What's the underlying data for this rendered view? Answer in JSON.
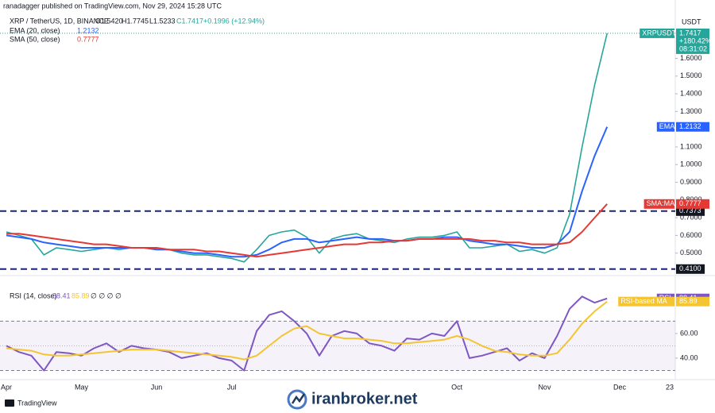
{
  "header": {
    "publisher": "ranadagger published on TradingView.com, Nov 29, 2024 15:28 UTC",
    "ohlc": [
      "O1.5420",
      "H1.7745",
      "L1.5233",
      "C1.7417",
      "+0.1996 (+12.94%)"
    ],
    "ema_value": "1.2132",
    "sma_value": "0.7777"
  },
  "chart_data": [
    {
      "type": "line",
      "currency": "USDT",
      "categories": [
        "Apr",
        null,
        null,
        null,
        null,
        null,
        "May",
        null,
        null,
        null,
        null,
        null,
        "Jun",
        null,
        null,
        null,
        null,
        null,
        "Jul",
        null,
        null,
        null,
        null,
        null,
        null,
        null,
        null,
        null,
        null,
        null,
        null,
        null,
        null,
        null,
        null,
        null,
        "Oct",
        null,
        null,
        null,
        null,
        null,
        null,
        "Nov",
        null,
        null,
        null,
        null,
        null,
        "Dec",
        null,
        null,
        null,
        "23"
      ],
      "series": [
        {
          "name": "XRP / TetherUS, 1D, BINANCE",
          "color": "#26a69a",
          "values": [
            0.62,
            0.6,
            0.58,
            0.49,
            0.53,
            0.52,
            0.51,
            0.52,
            0.53,
            0.52,
            0.53,
            0.53,
            0.52,
            0.52,
            0.5,
            0.49,
            0.49,
            0.48,
            0.47,
            0.45,
            0.52,
            0.6,
            0.62,
            0.63,
            0.59,
            0.5,
            0.58,
            0.6,
            0.61,
            0.58,
            0.57,
            0.56,
            0.58,
            0.59,
            0.59,
            0.6,
            0.62,
            0.53,
            0.53,
            0.54,
            0.55,
            0.51,
            0.52,
            0.5,
            0.53,
            0.72,
            1.1,
            1.45,
            1.7417,
            null,
            null,
            null,
            null,
            null
          ]
        },
        {
          "name": "EMA (20, close)",
          "color": "#2962ff",
          "values": [
            0.6,
            0.59,
            0.58,
            0.56,
            0.55,
            0.54,
            0.53,
            0.53,
            0.53,
            0.53,
            0.53,
            0.53,
            0.52,
            0.52,
            0.51,
            0.5,
            0.5,
            0.49,
            0.48,
            0.48,
            0.49,
            0.52,
            0.56,
            0.58,
            0.58,
            0.56,
            0.57,
            0.58,
            0.59,
            0.58,
            0.58,
            0.57,
            0.57,
            0.58,
            0.58,
            0.59,
            0.59,
            0.57,
            0.56,
            0.55,
            0.55,
            0.54,
            0.53,
            0.53,
            0.55,
            0.62,
            0.85,
            1.05,
            1.2132,
            null,
            null,
            null,
            null,
            null
          ]
        },
        {
          "name": "SMA (50, close)",
          "color": "#e53935",
          "values": [
            0.61,
            0.61,
            0.6,
            0.59,
            0.58,
            0.57,
            0.56,
            0.55,
            0.55,
            0.54,
            0.53,
            0.53,
            0.53,
            0.52,
            0.52,
            0.52,
            0.51,
            0.51,
            0.5,
            0.49,
            0.48,
            0.49,
            0.5,
            0.51,
            0.52,
            0.53,
            0.54,
            0.55,
            0.55,
            0.56,
            0.56,
            0.57,
            0.57,
            0.58,
            0.58,
            0.58,
            0.58,
            0.58,
            0.57,
            0.57,
            0.56,
            0.56,
            0.55,
            0.55,
            0.55,
            0.56,
            0.62,
            0.7,
            0.7777,
            null,
            null,
            null,
            null,
            null
          ]
        }
      ],
      "ylim": [
        0.382,
        1.876
      ],
      "yticks": [
        {
          "value": 1.6,
          "label": "1.6000"
        },
        {
          "value": 1.5,
          "label": "1.5000"
        },
        {
          "value": 1.4,
          "label": "1.4000"
        },
        {
          "value": 1.3,
          "label": "1.3000"
        },
        {
          "value": 1.1,
          "label": "1.1000"
        },
        {
          "value": 1.0,
          "label": "1.0000"
        },
        {
          "value": 0.9,
          "label": "0.9000"
        },
        {
          "value": 0.8,
          "label": "0.8000"
        },
        {
          "value": 0.7,
          "label": "0.7000"
        },
        {
          "value": 0.6,
          "label": "0.6000"
        },
        {
          "value": 0.5,
          "label": "0.5000"
        }
      ],
      "grid": false,
      "levels": [
        {
          "value": 0.7373,
          "label": "0.7373"
        },
        {
          "value": 0.41,
          "label": "0.4100"
        }
      ],
      "tags": [
        {
          "series": 0,
          "text": "XRPUSDT",
          "lines": [
            "1.7417",
            "+180.42%",
            "08:31:02"
          ]
        },
        {
          "series": 1,
          "text": "EMA",
          "lines": [
            "1.2132"
          ]
        },
        {
          "series": 2,
          "text": "SMA:MA",
          "lines": [
            "0.7777"
          ]
        }
      ]
    },
    {
      "type": "line",
      "title": "RSI (14, close)",
      "legend_values": [
        "88.41",
        "85.89",
        "∅ ∅ ∅ ∅"
      ],
      "series": [
        {
          "name": "RSI",
          "color": "#7e57c2",
          "values": [
            50,
            45,
            42,
            30,
            45,
            44,
            42,
            48,
            52,
            45,
            50,
            48,
            47,
            45,
            40,
            42,
            44,
            40,
            38,
            30,
            62,
            75,
            78,
            70,
            60,
            42,
            58,
            62,
            60,
            52,
            50,
            46,
            56,
            55,
            60,
            58,
            70,
            40,
            42,
            45,
            48,
            38,
            44,
            40,
            58,
            80,
            90,
            85,
            88.41,
            null,
            null,
            null,
            null,
            null
          ]
        },
        {
          "name": "RSI-based MA",
          "color": "#f5c431",
          "values": [
            48,
            47,
            46,
            43,
            42,
            42,
            43,
            44,
            45,
            46,
            47,
            47,
            47,
            46,
            45,
            44,
            43,
            42,
            41,
            39,
            42,
            50,
            58,
            64,
            66,
            60,
            58,
            56,
            56,
            55,
            54,
            52,
            52,
            53,
            54,
            55,
            58,
            55,
            50,
            46,
            45,
            43,
            42,
            42,
            44,
            55,
            68,
            78,
            85.89,
            null,
            null,
            null,
            null,
            null
          ]
        }
      ],
      "ylim": [
        24.5,
        105
      ],
      "yticks": [
        {
          "value": 60,
          "label": "60.00"
        },
        {
          "value": 40,
          "label": "40.00"
        }
      ],
      "bands": [
        30,
        70
      ],
      "midline": 50,
      "tags": [
        {
          "series": 0,
          "text": "RSI",
          "lines": [
            "88.41"
          ]
        },
        {
          "series": 1,
          "text": "RSI-based MA",
          "lines": [
            "85.89"
          ]
        }
      ]
    }
  ],
  "footer": {
    "brand": "TradingView",
    "watermark": "iranbroker.net"
  }
}
